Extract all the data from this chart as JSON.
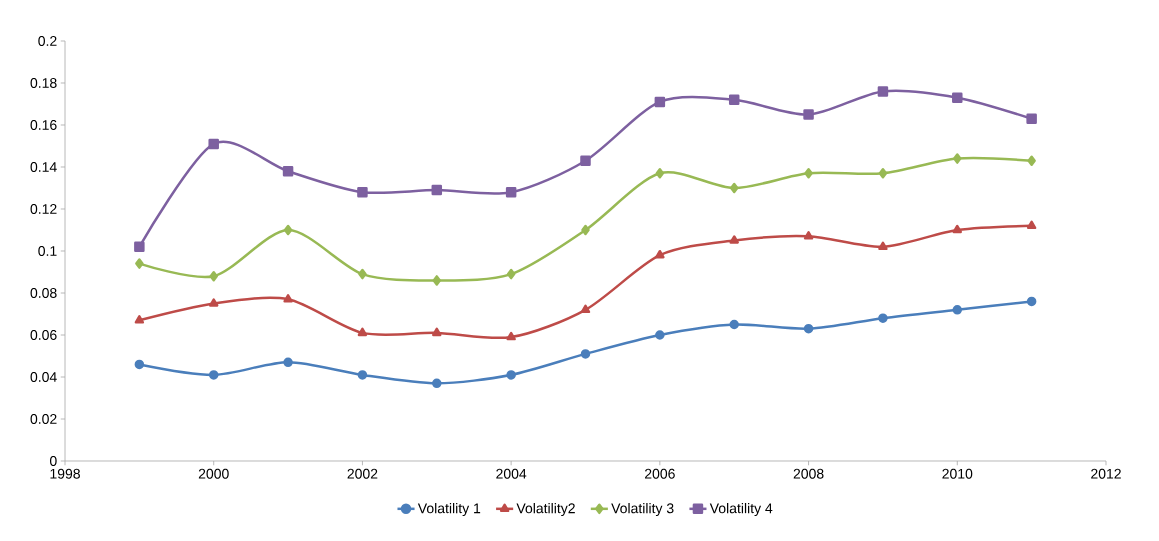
{
  "chart_data": {
    "type": "line",
    "x": [
      1999,
      2000,
      2001,
      2002,
      2003,
      2004,
      2005,
      2006,
      2007,
      2008,
      2009,
      2010,
      2011
    ],
    "series": [
      {
        "name": "Volatility 1",
        "color": "#4a7ebb",
        "marker": "circle",
        "values": [
          0.046,
          0.041,
          0.047,
          0.041,
          0.037,
          0.041,
          0.051,
          0.06,
          0.065,
          0.063,
          0.068,
          0.072,
          0.076
        ]
      },
      {
        "name": "Volatility2",
        "color": "#be4b48",
        "marker": "triangle",
        "values": [
          0.067,
          0.075,
          0.077,
          0.061,
          0.061,
          0.059,
          0.072,
          0.098,
          0.105,
          0.107,
          0.102,
          0.11,
          0.112
        ]
      },
      {
        "name": "Volatility 3",
        "color": "#98b954",
        "marker": "diamond",
        "values": [
          0.094,
          0.088,
          0.11,
          0.089,
          0.086,
          0.089,
          0.11,
          0.137,
          0.13,
          0.137,
          0.137,
          0.144,
          0.143
        ]
      },
      {
        "name": "Volatility 4",
        "color": "#7d60a0",
        "marker": "square",
        "values": [
          0.102,
          0.151,
          0.138,
          0.128,
          0.129,
          0.128,
          0.143,
          0.171,
          0.172,
          0.165,
          0.176,
          0.173,
          0.163
        ]
      }
    ],
    "xlim": [
      1998,
      2012
    ],
    "xticks": [
      1998,
      2000,
      2002,
      2004,
      2006,
      2008,
      2010,
      2012
    ],
    "ylim": [
      0,
      0.2
    ],
    "yticks": [
      0,
      0.02,
      0.04,
      0.06,
      0.08,
      0.1,
      0.12,
      0.14,
      0.16,
      0.18,
      0.2
    ],
    "grid": false,
    "legend": "bottom",
    "line_style": "solid"
  }
}
